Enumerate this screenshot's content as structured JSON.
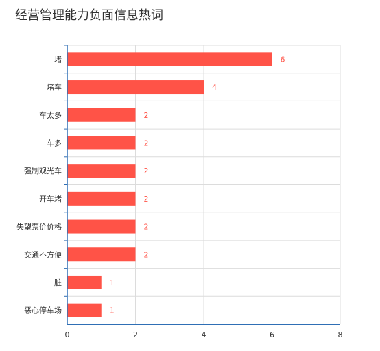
{
  "title": "经营管理能力负面信息热词",
  "colors": {
    "bar": "#ff5347",
    "data_label": "#ff5347",
    "grid": "#dcdcdc",
    "axis": "#2f6fb5",
    "text": "#333333"
  },
  "chart_data": {
    "type": "bar",
    "orientation": "horizontal",
    "title": "经营管理能力负面信息热词",
    "categories": [
      "堵",
      "堵车",
      "车太多",
      "车多",
      "强制观光车",
      "开车堵",
      "失望票价价格",
      "交通不方便",
      "脏",
      "恶心停车场"
    ],
    "values": [
      6,
      4,
      2,
      2,
      2,
      2,
      2,
      2,
      1,
      1
    ],
    "xlim": [
      0,
      8
    ],
    "xticks": [
      0,
      2,
      4,
      6,
      8
    ],
    "xlabel": "",
    "ylabel": "",
    "grid": true,
    "data_labels": true
  }
}
